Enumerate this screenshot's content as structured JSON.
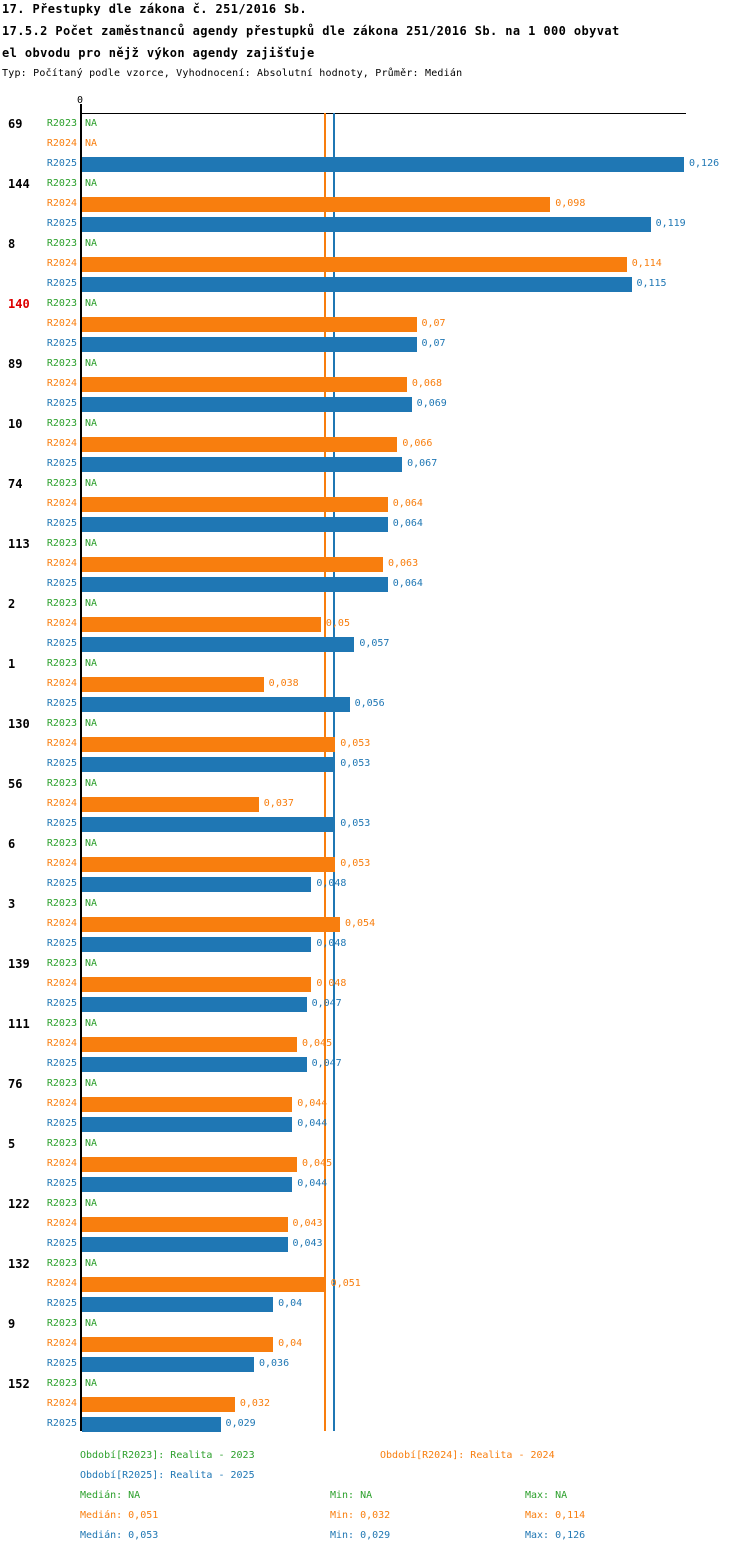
{
  "chart_data": {
    "type": "bar",
    "orientation": "horizontal",
    "title": "17. Přestupky dle zákona č. 251/2016 Sb.",
    "subtitle": "17.5.2 Počet zaměstnanců agendy přestupků dle zákona 251/2016 Sb. na 1 000 obyvat",
    "subtitle2": "el obvodu pro nějž výkon agendy zajišťuje",
    "meta": "Typ: Počítaný podle vzorce, Vyhodnocení: Absolutní hodnoty, Průměr: Medián",
    "x_axis": {
      "zero_label": "0",
      "min": 0,
      "max": 0.127,
      "grid": false
    },
    "series": [
      {
        "key": "R2023",
        "label": "R2023",
        "color": "#2ca02c",
        "median": null,
        "min": null,
        "max": null
      },
      {
        "key": "R2024",
        "label": "R2024",
        "color": "#f87e0e",
        "median": 0.051,
        "min": 0.032,
        "max": 0.114
      },
      {
        "key": "R2025",
        "label": "R2025",
        "color": "#1f77b4",
        "median": 0.053,
        "min": 0.029,
        "max": 0.126
      }
    ],
    "median_lines": [
      {
        "series": "R2024",
        "value": 0.051,
        "color": "#f87e0e"
      },
      {
        "series": "R2025",
        "value": 0.053,
        "color": "#1f77b4"
      }
    ],
    "id_highlight_color": "#dd0000",
    "groups": [
      {
        "id": "69",
        "highlight": false,
        "rows": [
          {
            "series": "R2023",
            "value": null,
            "label": "NA"
          },
          {
            "series": "R2024",
            "value": null,
            "label": "NA"
          },
          {
            "series": "R2025",
            "value": 0.126,
            "label": "0,126"
          }
        ]
      },
      {
        "id": "144",
        "highlight": false,
        "rows": [
          {
            "series": "R2023",
            "value": null,
            "label": "NA"
          },
          {
            "series": "R2024",
            "value": 0.098,
            "label": "0,098"
          },
          {
            "series": "R2025",
            "value": 0.119,
            "label": "0,119"
          }
        ]
      },
      {
        "id": "8",
        "highlight": false,
        "rows": [
          {
            "series": "R2023",
            "value": null,
            "label": "NA"
          },
          {
            "series": "R2024",
            "value": 0.114,
            "label": "0,114"
          },
          {
            "series": "R2025",
            "value": 0.115,
            "label": "0,115"
          }
        ]
      },
      {
        "id": "140",
        "highlight": true,
        "rows": [
          {
            "series": "R2023",
            "value": null,
            "label": "NA"
          },
          {
            "series": "R2024",
            "value": 0.07,
            "label": "0,07"
          },
          {
            "series": "R2025",
            "value": 0.07,
            "label": "0,07"
          }
        ]
      },
      {
        "id": "89",
        "highlight": false,
        "rows": [
          {
            "series": "R2023",
            "value": null,
            "label": "NA"
          },
          {
            "series": "R2024",
            "value": 0.068,
            "label": "0,068"
          },
          {
            "series": "R2025",
            "value": 0.069,
            "label": "0,069"
          }
        ]
      },
      {
        "id": "10",
        "highlight": false,
        "rows": [
          {
            "series": "R2023",
            "value": null,
            "label": "NA"
          },
          {
            "series": "R2024",
            "value": 0.066,
            "label": "0,066"
          },
          {
            "series": "R2025",
            "value": 0.067,
            "label": "0,067"
          }
        ]
      },
      {
        "id": "74",
        "highlight": false,
        "rows": [
          {
            "series": "R2023",
            "value": null,
            "label": "NA"
          },
          {
            "series": "R2024",
            "value": 0.064,
            "label": "0,064"
          },
          {
            "series": "R2025",
            "value": 0.064,
            "label": "0,064"
          }
        ]
      },
      {
        "id": "113",
        "highlight": false,
        "rows": [
          {
            "series": "R2023",
            "value": null,
            "label": "NA"
          },
          {
            "series": "R2024",
            "value": 0.063,
            "label": "0,063"
          },
          {
            "series": "R2025",
            "value": 0.064,
            "label": "0,064"
          }
        ]
      },
      {
        "id": "2",
        "highlight": false,
        "rows": [
          {
            "series": "R2023",
            "value": null,
            "label": "NA"
          },
          {
            "series": "R2024",
            "value": 0.05,
            "label": "0,05"
          },
          {
            "series": "R2025",
            "value": 0.057,
            "label": "0,057"
          }
        ]
      },
      {
        "id": "1",
        "highlight": false,
        "rows": [
          {
            "series": "R2023",
            "value": null,
            "label": "NA"
          },
          {
            "series": "R2024",
            "value": 0.038,
            "label": "0,038"
          },
          {
            "series": "R2025",
            "value": 0.056,
            "label": "0,056"
          }
        ]
      },
      {
        "id": "130",
        "highlight": false,
        "rows": [
          {
            "series": "R2023",
            "value": null,
            "label": "NA"
          },
          {
            "series": "R2024",
            "value": 0.053,
            "label": "0,053"
          },
          {
            "series": "R2025",
            "value": 0.053,
            "label": "0,053"
          }
        ]
      },
      {
        "id": "56",
        "highlight": false,
        "rows": [
          {
            "series": "R2023",
            "value": null,
            "label": "NA"
          },
          {
            "series": "R2024",
            "value": 0.037,
            "label": "0,037"
          },
          {
            "series": "R2025",
            "value": 0.053,
            "label": "0,053"
          }
        ]
      },
      {
        "id": "6",
        "highlight": false,
        "rows": [
          {
            "series": "R2023",
            "value": null,
            "label": "NA"
          },
          {
            "series": "R2024",
            "value": 0.053,
            "label": "0,053"
          },
          {
            "series": "R2025",
            "value": 0.048,
            "label": "0,048"
          }
        ]
      },
      {
        "id": "3",
        "highlight": false,
        "rows": [
          {
            "series": "R2023",
            "value": null,
            "label": "NA"
          },
          {
            "series": "R2024",
            "value": 0.054,
            "label": "0,054"
          },
          {
            "series": "R2025",
            "value": 0.048,
            "label": "0,048"
          }
        ]
      },
      {
        "id": "139",
        "highlight": false,
        "rows": [
          {
            "series": "R2023",
            "value": null,
            "label": "NA"
          },
          {
            "series": "R2024",
            "value": 0.048,
            "label": "0,048"
          },
          {
            "series": "R2025",
            "value": 0.047,
            "label": "0,047"
          }
        ]
      },
      {
        "id": "111",
        "highlight": false,
        "rows": [
          {
            "series": "R2023",
            "value": null,
            "label": "NA"
          },
          {
            "series": "R2024",
            "value": 0.045,
            "label": "0,045"
          },
          {
            "series": "R2025",
            "value": 0.047,
            "label": "0,047"
          }
        ]
      },
      {
        "id": "76",
        "highlight": false,
        "rows": [
          {
            "series": "R2023",
            "value": null,
            "label": "NA"
          },
          {
            "series": "R2024",
            "value": 0.044,
            "label": "0,044"
          },
          {
            "series": "R2025",
            "value": 0.044,
            "label": "0,044"
          }
        ]
      },
      {
        "id": "5",
        "highlight": false,
        "rows": [
          {
            "series": "R2023",
            "value": null,
            "label": "NA"
          },
          {
            "series": "R2024",
            "value": 0.045,
            "label": "0,045"
          },
          {
            "series": "R2025",
            "value": 0.044,
            "label": "0,044"
          }
        ]
      },
      {
        "id": "122",
        "highlight": false,
        "rows": [
          {
            "series": "R2023",
            "value": null,
            "label": "NA"
          },
          {
            "series": "R2024",
            "value": 0.043,
            "label": "0,043"
          },
          {
            "series": "R2025",
            "value": 0.043,
            "label": "0,043"
          }
        ]
      },
      {
        "id": "132",
        "highlight": false,
        "rows": [
          {
            "series": "R2023",
            "value": null,
            "label": "NA"
          },
          {
            "series": "R2024",
            "value": 0.051,
            "label": "0,051"
          },
          {
            "series": "R2025",
            "value": 0.04,
            "label": "0,04"
          }
        ]
      },
      {
        "id": "9",
        "highlight": false,
        "rows": [
          {
            "series": "R2023",
            "value": null,
            "label": "NA"
          },
          {
            "series": "R2024",
            "value": 0.04,
            "label": "0,04"
          },
          {
            "series": "R2025",
            "value": 0.036,
            "label": "0,036"
          }
        ]
      },
      {
        "id": "152",
        "highlight": false,
        "rows": [
          {
            "series": "R2023",
            "value": null,
            "label": "NA"
          },
          {
            "series": "R2024",
            "value": 0.032,
            "label": "0,032"
          },
          {
            "series": "R2025",
            "value": 0.029,
            "label": "0,029"
          }
        ]
      }
    ]
  },
  "legend": {
    "period_labels": [
      {
        "series": "R2023",
        "text": "Období[R2023]: Realita - 2023"
      },
      {
        "series": "R2024",
        "text": "Období[R2024]: Realita - 2024"
      },
      {
        "series": "R2025",
        "text": "Období[R2025]: Realita - 2025"
      }
    ],
    "stats": [
      {
        "series": "R2023",
        "median": "Medián: NA",
        "min": "Min: NA",
        "max": "Max: NA"
      },
      {
        "series": "R2024",
        "median": "Medián: 0,051",
        "min": "Min: 0,032",
        "max": "Max: 0,114"
      },
      {
        "series": "R2025",
        "median": "Medián: 0,053",
        "min": "Min: 0,029",
        "max": "Max: 0,126"
      }
    ]
  }
}
